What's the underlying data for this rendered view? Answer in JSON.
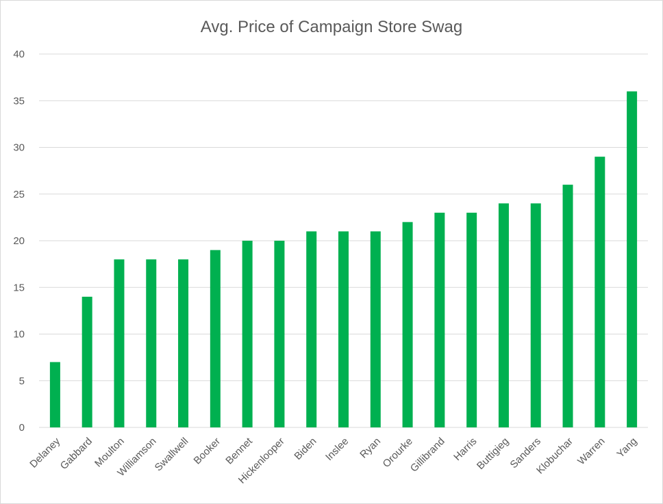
{
  "chart_data": {
    "type": "bar",
    "title": "Avg. Price of Campaign Store Swag",
    "xlabel": "",
    "ylabel": "",
    "categories": [
      "Delaney",
      "Gabbard",
      "Moulton",
      "Williamson",
      "Swallwell",
      "Booker",
      "Bennet",
      "Hickenlooper",
      "Biden",
      "Inslee",
      "Ryan",
      "Orourke",
      "Gillibrand",
      "Harris",
      "Buttigieg",
      "Sanders",
      "Klobuchar",
      "Warren",
      "Yang"
    ],
    "values": [
      7,
      14,
      18,
      18,
      18,
      19,
      20,
      20,
      21,
      21,
      21,
      22,
      23,
      23,
      24,
      24,
      26,
      29,
      36
    ],
    "ylim": [
      0,
      40
    ],
    "yticks": [
      "0",
      "5",
      "10",
      "15",
      "20",
      "25",
      "30",
      "35",
      "40"
    ],
    "grid": true,
    "legend": "none",
    "bar_color": "#00b050",
    "grid_color": "#d9d9d9",
    "text_color": "#595959"
  }
}
